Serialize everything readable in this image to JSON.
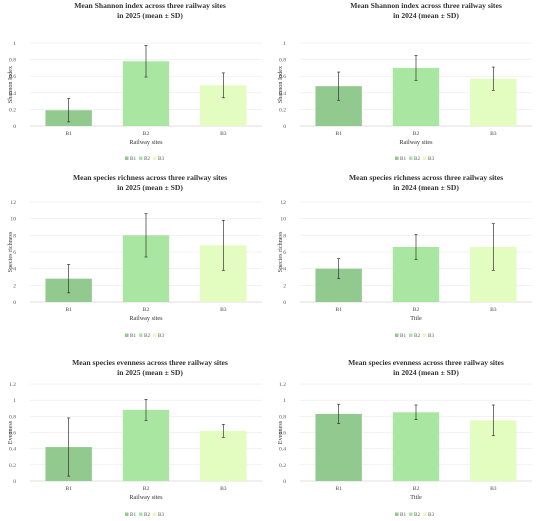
{
  "palette": {
    "B1": "#92c98f",
    "B2": "#a8e6a2",
    "B3": "#e3fcc0"
  },
  "chart_data": [
    {
      "type": "bar",
      "title": [
        "Mean Shannon index across three railway sites",
        "in 2025 (mean ± SD)"
      ],
      "xlabel": "Railway sites",
      "ylabel": "Shannon Index",
      "categories": [
        "B1",
        "B2",
        "B3"
      ],
      "values": [
        0.19,
        0.78,
        0.49
      ],
      "errors": [
        0.14,
        0.19,
        0.15
      ],
      "ylim": [
        0,
        1
      ],
      "yticks": [
        0,
        0.2,
        0.4,
        0.6,
        0.8,
        1
      ],
      "legend": [
        "B1",
        "B2",
        "B3"
      ],
      "legend_position": "bottom"
    },
    {
      "type": "bar",
      "title": [
        "Mean Shannon index across three railway sites",
        "in 2024 (mean ± SD)"
      ],
      "xlabel": "Railway sites",
      "ylabel": "Shannon Index",
      "categories": [
        "B1",
        "B2",
        "B3"
      ],
      "values": [
        0.48,
        0.7,
        0.57
      ],
      "errors": [
        0.17,
        0.15,
        0.14
      ],
      "ylim": [
        0,
        1
      ],
      "yticks": [
        0,
        0.2,
        0.4,
        0.6,
        0.8,
        1
      ],
      "legend": [
        "B1",
        "B2",
        "B3"
      ],
      "legend_position": "bottom"
    },
    {
      "type": "bar",
      "title": [
        "Mean species richness across three railway sites",
        "in 2025 (mean ± SD)"
      ],
      "xlabel": "Railway sites",
      "ylabel": "Species richness",
      "categories": [
        "B1",
        "B2",
        "B3"
      ],
      "values": [
        2.8,
        8.0,
        6.8
      ],
      "errors": [
        1.7,
        2.6,
        3.0
      ],
      "ylim": [
        0,
        12
      ],
      "yticks": [
        0,
        2,
        4,
        6,
        8,
        10,
        12
      ],
      "legend": [
        "B1",
        "B2",
        "B3"
      ],
      "legend_position": "bottom"
    },
    {
      "type": "bar",
      "title": [
        "Mean species richness across three railway sites",
        "in 2024 (mean ± SD)"
      ],
      "xlabel": "Title",
      "ylabel": "Species richness",
      "categories": [
        "B1",
        "B2",
        "B3"
      ],
      "values": [
        4.0,
        6.6,
        6.6
      ],
      "errors": [
        1.2,
        1.5,
        2.8
      ],
      "ylim": [
        0,
        12
      ],
      "yticks": [
        0,
        2,
        4,
        6,
        8,
        10,
        12
      ],
      "legend": [
        "B1",
        "B2",
        "B3"
      ],
      "legend_position": "bottom"
    },
    {
      "type": "bar",
      "title": [
        "Mean species evenness across three railway sites",
        "in 2025 (mean ± SD)"
      ],
      "xlabel": "Railway sites",
      "ylabel": "Evenness",
      "categories": [
        "B1",
        "B2",
        "B3"
      ],
      "values": [
        0.42,
        0.88,
        0.62
      ],
      "errors": [
        0.36,
        0.13,
        0.08
      ],
      "ylim": [
        0,
        1.2
      ],
      "yticks": [
        0,
        0.2,
        0.4,
        0.6,
        0.8,
        1,
        1.2
      ],
      "legend": [
        "B1",
        "B2",
        "B3"
      ],
      "legend_position": "bottom"
    },
    {
      "type": "bar",
      "title": [
        "Mean species evenness across three railway sites",
        "in 2024 (mean ± SD)"
      ],
      "xlabel": "Title",
      "ylabel": "Evenness",
      "categories": [
        "B1",
        "B2",
        "B3"
      ],
      "values": [
        0.83,
        0.85,
        0.75
      ],
      "errors": [
        0.12,
        0.09,
        0.19
      ],
      "ylim": [
        0,
        1.2
      ],
      "yticks": [
        0,
        0.2,
        0.4,
        0.6,
        0.8,
        1,
        1.2
      ],
      "legend": [
        "B1",
        "B2",
        "B3"
      ],
      "legend_position": "bottom"
    }
  ]
}
